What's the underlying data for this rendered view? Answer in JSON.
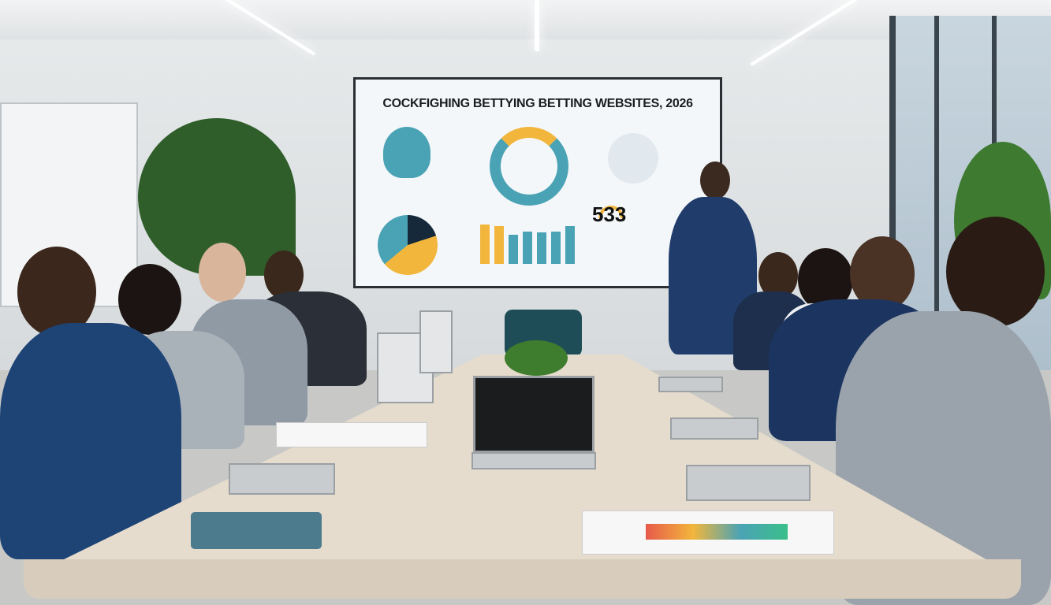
{
  "screen": {
    "title": "COCKFIGHING BETTYING BETTING WEBSITES, 2026",
    "stat_value": "533",
    "colors": {
      "teal": "#4aa3b5",
      "yellow": "#f2b63c",
      "navy": "#15293b"
    }
  },
  "scene": {
    "icons": [
      "rooster-icon",
      "donut-gauge-icon",
      "building-icon",
      "pie-chart-icon",
      "bar-chart-icon",
      "gauge-icon"
    ]
  }
}
